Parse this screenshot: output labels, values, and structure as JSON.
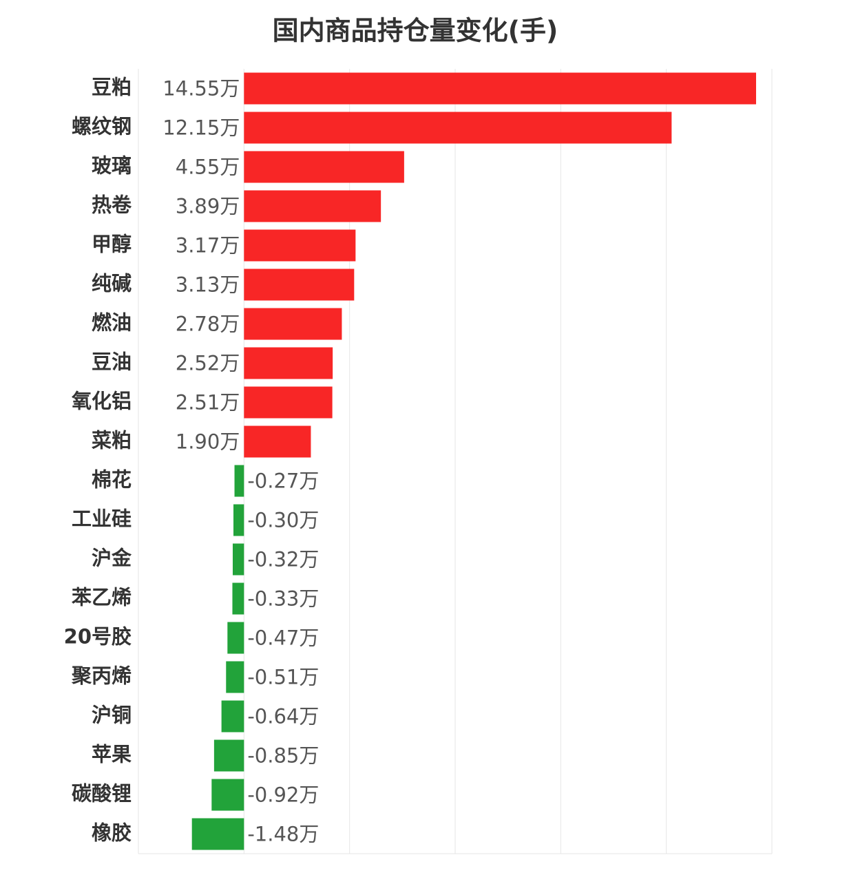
{
  "chart_data": {
    "type": "bar",
    "orientation": "horizontal",
    "title": "国内商品持仓量变化(手)",
    "categories": [
      "豆粕",
      "螺纹钢",
      "玻璃",
      "热卷",
      "甲醇",
      "纯碱",
      "燃油",
      "豆油",
      "氧化铝",
      "菜粕",
      "棉花",
      "工业硅",
      "沪金",
      "苯乙烯",
      "20号胶",
      "聚丙烯",
      "沪铜",
      "苹果",
      "碳酸锂",
      "橡胶"
    ],
    "values": [
      14.55,
      12.15,
      4.55,
      3.89,
      3.17,
      3.13,
      2.78,
      2.52,
      2.51,
      1.9,
      -0.27,
      -0.3,
      -0.32,
      -0.33,
      -0.47,
      -0.51,
      -0.64,
      -0.85,
      -0.92,
      -1.48
    ],
    "value_labels": [
      "14.55万",
      "12.15万",
      "4.55万",
      "3.89万",
      "3.17万",
      "3.13万",
      "2.78万",
      "2.52万",
      "2.51万",
      "1.90万",
      "-0.27万",
      "-0.30万",
      "-0.32万",
      "-0.33万",
      "-0.47万",
      "-0.51万",
      "-0.64万",
      "-0.85万",
      "-0.92万",
      "-1.48万"
    ],
    "positive_color": "#f82626",
    "negative_color": "#22a33a",
    "xlim": [
      -3,
      15
    ],
    "xticks": [
      -3,
      0,
      3,
      6,
      9,
      12,
      15
    ],
    "grid": true
  }
}
